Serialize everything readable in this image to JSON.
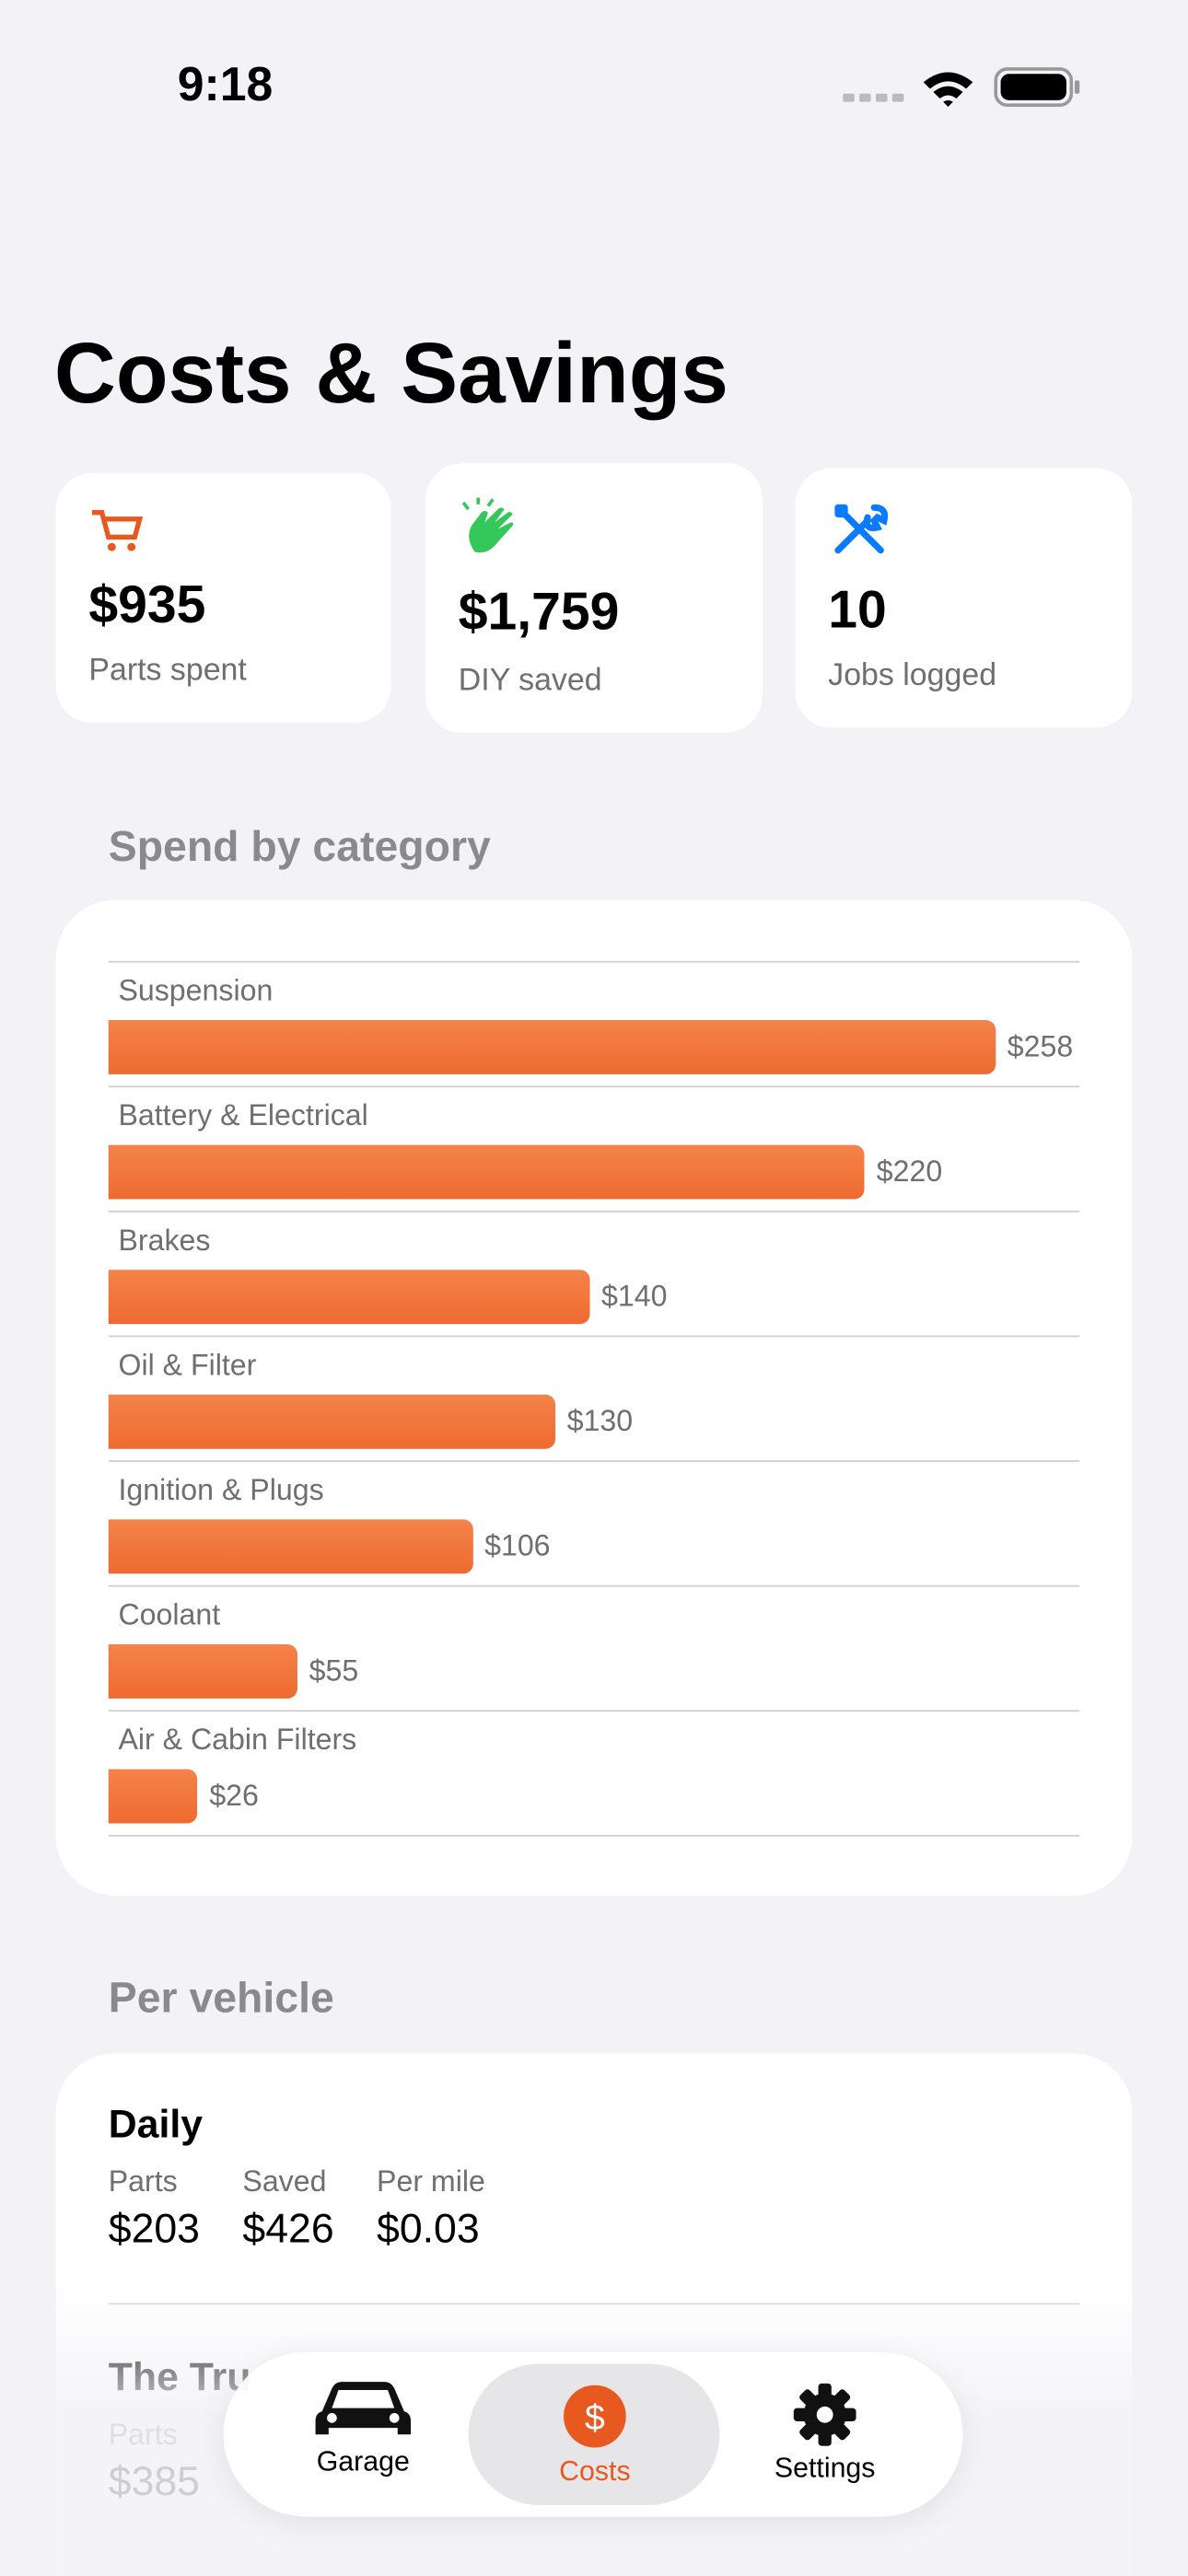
{
  "status": {
    "time": "9:18"
  },
  "header": {
    "title": "Costs & Savings"
  },
  "stats": [
    {
      "value": "$935",
      "label": "Parts spent"
    },
    {
      "value": "$1,759",
      "label": "DIY saved"
    },
    {
      "value": "10",
      "label": "Jobs logged"
    }
  ],
  "chart_data": {
    "type": "bar",
    "title": "Spend by category",
    "orientation": "horizontal",
    "color": "#ee6a30",
    "categories": [
      "Suspension",
      "Battery & Electrical",
      "Brakes",
      "Oil & Filter",
      "Ignition & Plugs",
      "Coolant",
      "Air & Cabin Filters"
    ],
    "values": [
      258,
      220,
      140,
      130,
      106,
      55,
      26
    ],
    "value_labels": [
      "$258",
      "$220",
      "$140",
      "$130",
      "$106",
      "$55",
      "$26"
    ]
  },
  "per_vehicle": {
    "title": "Per vehicle",
    "vehicles": [
      {
        "name": "Daily",
        "metrics": [
          {
            "label": "Parts",
            "value": "$203"
          },
          {
            "label": "Saved",
            "value": "$426"
          },
          {
            "label": "Per mile",
            "value": "$0.03"
          }
        ]
      },
      {
        "name": "The Tru",
        "metrics": [
          {
            "label": "Parts",
            "value": "$385"
          }
        ]
      }
    ]
  },
  "tabs": [
    "Garage",
    "Costs",
    "Settings"
  ]
}
